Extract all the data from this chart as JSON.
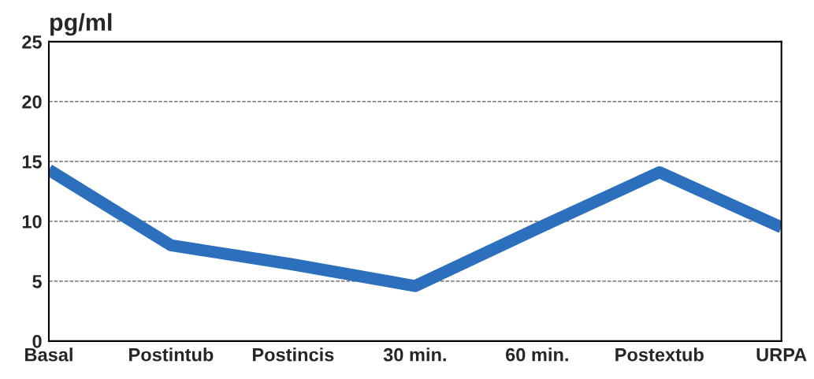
{
  "chart_data": {
    "type": "line",
    "ylabel": "pg/ml",
    "categories": [
      "Basal",
      "Postintub",
      "Postincis",
      "30 min.",
      "60 min.",
      "Postextub",
      "URPA"
    ],
    "series": [
      {
        "color": "#2b6fbd",
        "values": [
          14.3,
          8.0,
          6.4,
          4.6,
          9.4,
          14.1,
          9.5
        ]
      }
    ],
    "ylim": [
      0,
      25
    ],
    "yticks": [
      0,
      5,
      10,
      15,
      20,
      25
    ],
    "grid": "y",
    "line_style": "solid",
    "marker": "none"
  }
}
